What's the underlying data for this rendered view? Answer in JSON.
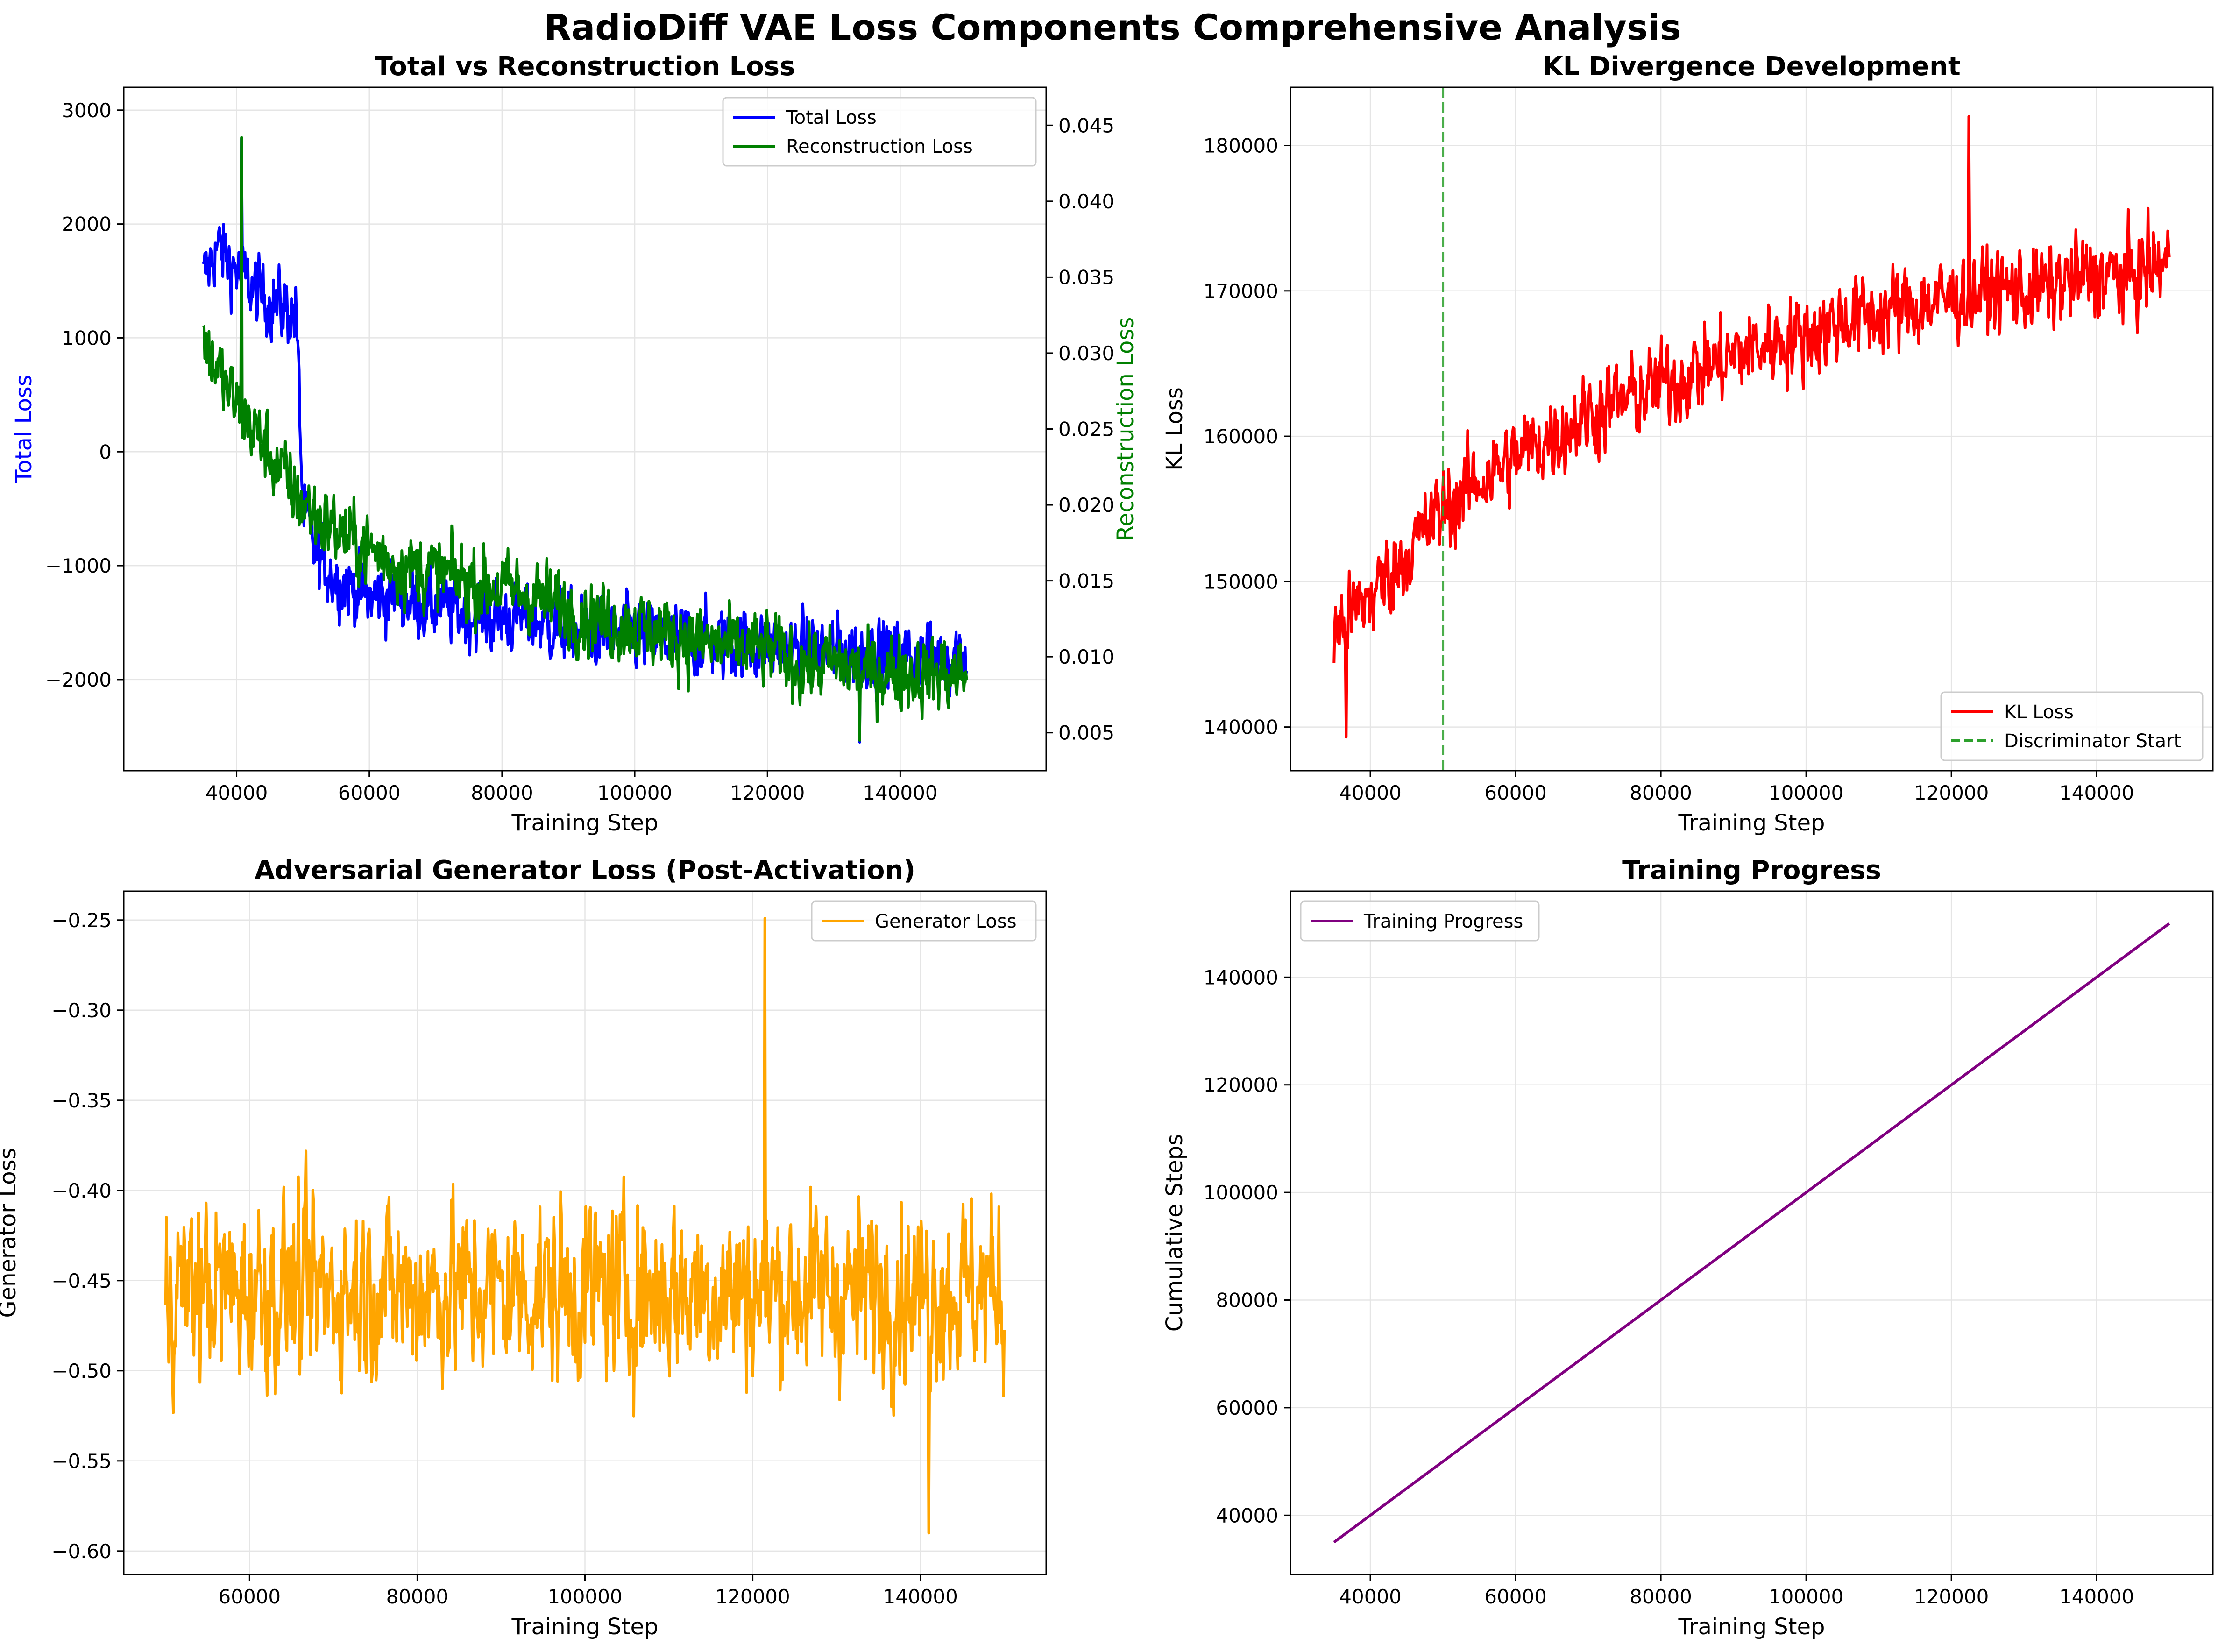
{
  "figure_title": "RadioDiff VAE Loss Components Comprehensive Analysis",
  "colors": {
    "total": "#0000ff",
    "recon": "#008000",
    "kl": "#ff0000",
    "disc": "#2ca02c",
    "gen": "#ffa500",
    "progress": "#800080",
    "grid": "#e5e5e5",
    "axis": "#000000"
  },
  "chart_data": [
    {
      "type": "line",
      "title": "Total vs Reconstruction Loss",
      "xlabel": "Training Step",
      "ylabel": "Total Loss",
      "ylabel_right": "Reconstruction Loss",
      "xlim": [
        23000,
        162000
      ],
      "ylim": [
        -2800,
        3200
      ],
      "ylim_right": [
        0.0025,
        0.0475
      ],
      "xticks": [
        40000,
        60000,
        80000,
        100000,
        120000,
        140000
      ],
      "xtick_labels": [
        "40000",
        "60000",
        "80000",
        "100000",
        "120000",
        "140000"
      ],
      "yticks": [
        -2000,
        -1000,
        0,
        1000,
        2000,
        3000
      ],
      "ytick_labels": [
        "−2000",
        "−1000",
        "0",
        "1000",
        "2000",
        "3000"
      ],
      "yticks_right": [
        0.005,
        0.01,
        0.015,
        0.02,
        0.025,
        0.03,
        0.035,
        0.04,
        0.045
      ],
      "ytick_labels_right": [
        "0.005",
        "0.010",
        "0.015",
        "0.020",
        "0.025",
        "0.030",
        "0.035",
        "0.040",
        "0.045"
      ],
      "grid": true,
      "legend_position": "top-right",
      "series": [
        {
          "name": "Total Loss",
          "axis": "left",
          "x": [
            35000,
            37000,
            40000,
            43000,
            46000,
            49000,
            50000,
            52000,
            55000,
            58000,
            60000,
            63000,
            66000,
            70000,
            74000,
            78000,
            82000,
            86000,
            90000,
            95000,
            100000,
            105000,
            110000,
            115000,
            120000,
            125000,
            130000,
            135000,
            140000,
            145000,
            150000
          ],
          "y": [
            1500,
            1800,
            1600,
            1400,
            1300,
            1200,
            -500,
            -900,
            -1100,
            -1200,
            -1300,
            -1250,
            -1300,
            -1350,
            -1400,
            -1450,
            -1450,
            -1500,
            -1550,
            -1600,
            -1600,
            -1650,
            -1650,
            -1700,
            -1700,
            -1750,
            -1750,
            -1750,
            -1800,
            -1800,
            -1750
          ],
          "noise": 450,
          "spike_min": 2750,
          "spike_max": -2550
        },
        {
          "name": "Reconstruction Loss",
          "axis": "right",
          "x": [
            35000,
            38000,
            41000,
            44000,
            47000,
            50000,
            53000,
            56000,
            60000,
            65000,
            70000,
            75000,
            80000,
            85000,
            90000,
            95000,
            100000,
            105000,
            110000,
            115000,
            120000,
            125000,
            130000,
            135000,
            140000,
            145000,
            150000
          ],
          "y": [
            0.031,
            0.028,
            0.026,
            0.024,
            0.022,
            0.02,
            0.019,
            0.018,
            0.017,
            0.016,
            0.0155,
            0.015,
            0.0145,
            0.014,
            0.013,
            0.0125,
            0.012,
            0.0115,
            0.011,
            0.0105,
            0.0105,
            0.0095,
            0.0095,
            0.009,
            0.009,
            0.0088,
            0.0088
          ],
          "noise": 0.0035,
          "spike_min": 0.0442,
          "spike_max": 0.0045
        }
      ]
    },
    {
      "type": "line",
      "title": "KL Divergence Development",
      "xlabel": "Training Step",
      "ylabel": "KL Loss",
      "xlim": [
        29000,
        156000
      ],
      "ylim": [
        137000,
        184000
      ],
      "xticks": [
        40000,
        60000,
        80000,
        100000,
        120000,
        140000
      ],
      "xtick_labels": [
        "40000",
        "60000",
        "80000",
        "100000",
        "120000",
        "140000"
      ],
      "yticks": [
        140000,
        150000,
        160000,
        170000,
        180000
      ],
      "ytick_labels": [
        "140000",
        "150000",
        "160000",
        "170000",
        "180000"
      ],
      "grid": true,
      "legend_position": "bottom-right",
      "series": [
        {
          "name": "KL Loss",
          "x": [
            35000,
            40000,
            45000,
            50000,
            55000,
            60000,
            65000,
            70000,
            75000,
            80000,
            85000,
            90000,
            95000,
            100000,
            105000,
            110000,
            115000,
            120000,
            125000,
            130000,
            135000,
            140000,
            145000,
            150000
          ],
          "y": [
            146500,
            149000,
            152000,
            155000,
            157000,
            158500,
            160000,
            161500,
            162500,
            163500,
            164500,
            165500,
            166500,
            167000,
            168000,
            168500,
            169000,
            169500,
            170000,
            170000,
            170500,
            171000,
            171000,
            172000
          ],
          "noise": 4200,
          "spike_min": 139300,
          "spike_max": 182000
        }
      ],
      "vline": {
        "name": "Discriminator Start",
        "x": 50000
      }
    },
    {
      "type": "line",
      "title": "Adversarial Generator Loss (Post-Activation)",
      "xlabel": "Training Step",
      "ylabel": "Generator Loss",
      "xlim": [
        45000,
        155000
      ],
      "ylim": [
        -0.613,
        -0.234
      ],
      "xticks": [
        60000,
        80000,
        100000,
        120000,
        140000
      ],
      "xtick_labels": [
        "60000",
        "80000",
        "100000",
        "120000",
        "140000"
      ],
      "yticks": [
        -0.6,
        -0.55,
        -0.5,
        -0.45,
        -0.4,
        -0.35,
        -0.3,
        -0.25
      ],
      "ytick_labels": [
        "−0.60",
        "−0.55",
        "−0.50",
        "−0.45",
        "−0.40",
        "−0.35",
        "−0.30",
        "−0.25"
      ],
      "grid": true,
      "legend_position": "top-right",
      "series": [
        {
          "name": "Generator Loss",
          "x": [
            50000,
            150000
          ],
          "y": [
            -0.455,
            -0.455
          ],
          "noise": 0.07,
          "spike_min": -0.59,
          "spike_max": -0.249
        }
      ]
    },
    {
      "type": "line",
      "title": "Training Progress",
      "xlabel": "Training Step",
      "ylabel": "Cumulative Steps",
      "xlim": [
        29000,
        156000
      ],
      "ylim": [
        29000,
        156000
      ],
      "xticks": [
        40000,
        60000,
        80000,
        100000,
        120000,
        140000
      ],
      "xtick_labels": [
        "40000",
        "60000",
        "80000",
        "100000",
        "120000",
        "140000"
      ],
      "yticks": [
        40000,
        60000,
        80000,
        100000,
        120000,
        140000
      ],
      "ytick_labels": [
        "40000",
        "60000",
        "80000",
        "100000",
        "120000",
        "140000"
      ],
      "grid": true,
      "legend_position": "top-left",
      "series": [
        {
          "name": "Training Progress",
          "x": [
            35000,
            150000
          ],
          "y": [
            35000,
            150000
          ]
        }
      ]
    }
  ]
}
